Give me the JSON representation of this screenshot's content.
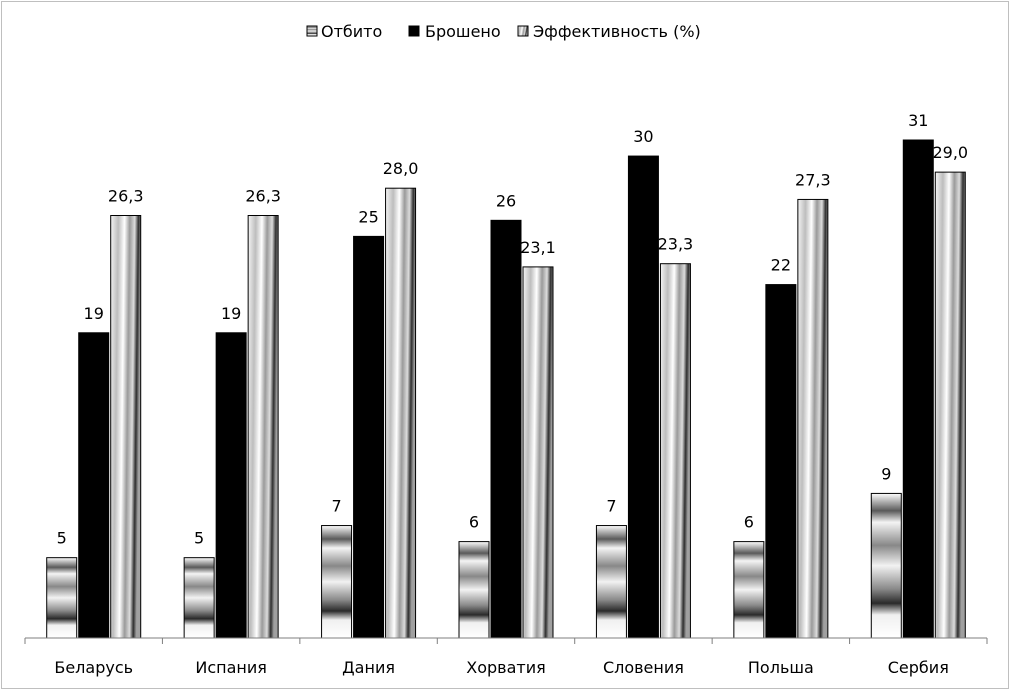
{
  "chart_data": {
    "type": "bar",
    "title": "",
    "xlabel": "",
    "ylabel": "",
    "categories": [
      "Беларусь",
      "Испания",
      "Дания",
      "Хорватия",
      "Словения",
      "Польша",
      "Сербия"
    ],
    "series": [
      {
        "name": "Отбито",
        "values": [
          5,
          5,
          7,
          6,
          7,
          6,
          9
        ],
        "labels": [
          "5",
          "5",
          "7",
          "6",
          "7",
          "6",
          "9"
        ]
      },
      {
        "name": "Брошено",
        "values": [
          19,
          19,
          25,
          26,
          30,
          22,
          31
        ],
        "labels": [
          "19",
          "19",
          "25",
          "26",
          "30",
          "22",
          "31"
        ]
      },
      {
        "name": "Эффективность (%)",
        "values": [
          26.3,
          26.3,
          28.0,
          23.1,
          23.3,
          27.3,
          29.0
        ],
        "labels": [
          "26,3",
          "26,3",
          "28,0",
          "23,1",
          "23,3",
          "27,3",
          "29,0"
        ]
      }
    ],
    "ylim": [
      0,
      31
    ],
    "grid": false,
    "legend": "top-center",
    "data_labels": true
  }
}
